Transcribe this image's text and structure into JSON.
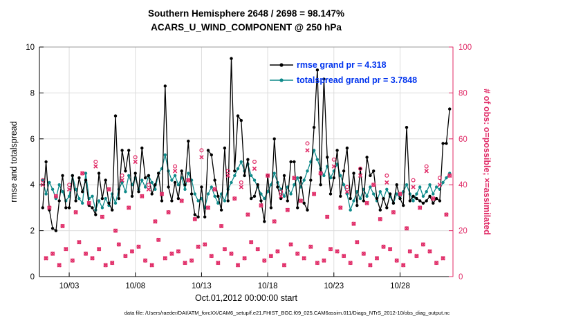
{
  "caption": "data file: /Users/raeder/DAI/ATM_forcXX/CAM6_setup/f.e21.FHIST_BGC.f09_025.CAM6assim.011/Diags_NTrS_2012-10/obs_diag_output.nc",
  "colors": {
    "rmse": "#000000",
    "totalspread": "#0e8a8a",
    "obs": "#e02a66",
    "legend_text": "#0033ee",
    "grid": "#dcdcdc",
    "box": "#999999"
  },
  "chart_data": {
    "type": "line",
    "title_lines": [
      "Southern Hemisphere 2648 / 2698 = 98.147%",
      "ACARS_U_WIND_COMPONENT @ 250 hPa"
    ],
    "xlabel": "Oct.01,2012 00:00:00 start",
    "ylabel_left": "rmse and totalspread",
    "ylabel_right": "# of obs: o=possible; ×=assimilated",
    "ylim_left": [
      0,
      10
    ],
    "ylim_right": [
      0,
      100
    ],
    "y_ticks_left": [
      0,
      2,
      4,
      6,
      8,
      10
    ],
    "y_ticks_right": [
      0,
      20,
      40,
      60,
      80,
      100
    ],
    "x_range": [
      -1,
      124
    ],
    "bin_interval_hours": 6,
    "x_ticks": [
      {
        "pos": 8,
        "label": "10/03"
      },
      {
        "pos": 28,
        "label": "10/08"
      },
      {
        "pos": 48,
        "label": "10/13"
      },
      {
        "pos": 68,
        "label": "10/18"
      },
      {
        "pos": 88,
        "label": "10/23"
      },
      {
        "pos": 108,
        "label": "10/28"
      }
    ],
    "legend": [
      {
        "label": "rmse grand pr = 4.318",
        "series": "rmse"
      },
      {
        "label": "totalspread grand pr = 3.7848",
        "series": "totalspread"
      }
    ],
    "grid": true,
    "series": [
      {
        "name": "rmse",
        "axis": "left",
        "values": [
          3.0,
          5.0,
          2.9,
          2.1,
          2.0,
          3.3,
          4.4,
          3.0,
          3.0,
          4.4,
          3.3,
          4.3,
          3.7,
          4.2,
          3.1,
          3.0,
          2.7,
          4.5,
          3.4,
          4.2,
          3.2,
          2.9,
          7.0,
          3.4,
          5.5,
          4.6,
          5.5,
          3.5,
          4.5,
          3.7,
          5.6,
          4.3,
          4.4,
          3.6,
          4.0,
          4.5,
          3.3,
          8.3,
          3.9,
          3.3,
          4.1,
          3.4,
          4.6,
          4.0,
          5.9,
          3.6,
          2.7,
          2.6,
          3.9,
          2.6,
          5.5,
          5.3,
          4.2,
          3.5,
          2.9,
          5.6,
          3.3,
          9.5,
          4.6,
          7.0,
          6.8,
          4.4,
          5.1,
          3.4,
          3.5,
          4.0,
          3.3,
          2.4,
          4.4,
          3.0,
          6.0,
          3.9,
          3.4,
          4.4,
          3.3,
          5.0,
          5.0,
          3.0,
          4.3,
          3.2,
          2.9,
          4.2,
          6.5,
          9.0,
          4.0,
          8.6,
          5.2,
          3.6,
          4.3,
          5.5,
          3.5,
          4.6,
          5.6,
          3.4,
          4.5,
          3.1,
          4.7,
          3.3,
          5.2,
          4.4,
          4.6,
          3.4,
          2.9,
          3.4,
          3.0,
          3.6,
          3.2,
          4.0,
          3.4,
          3.1,
          6.5,
          3.3,
          3.5,
          3.4,
          3.3,
          3.2,
          3.3,
          3.5,
          3.2,
          3.4,
          3.3,
          5.8,
          5.8,
          7.3
        ]
      },
      {
        "name": "totalspread",
        "axis": "left",
        "values": [
          4.2,
          3.6,
          4.1,
          3.8,
          3.4,
          4.0,
          3.7,
          3.3,
          3.5,
          4.4,
          3.8,
          3.4,
          3.2,
          4.5,
          3.4,
          3.5,
          2.9,
          3.3,
          3.0,
          3.4,
          3.1,
          3.6,
          3.2,
          3.8,
          4.1,
          3.7,
          4.4,
          4.0,
          4.3,
          3.8,
          4.2,
          3.9,
          4.4,
          4.1,
          3.8,
          4.5,
          4.7,
          5.3,
          4.6,
          4.2,
          4.4,
          4.0,
          4.3,
          3.8,
          4.5,
          4.2,
          3.6,
          3.3,
          3.4,
          3.0,
          3.6,
          3.9,
          3.5,
          3.2,
          3.6,
          3.3,
          3.8,
          4.1,
          4.4,
          4.7,
          5.0,
          4.6,
          4.9,
          4.4,
          4.2,
          3.9,
          3.6,
          3.4,
          3.7,
          4.0,
          4.5,
          4.1,
          3.8,
          3.5,
          3.9,
          3.6,
          4.0,
          4.3,
          3.9,
          4.2,
          4.6,
          5.0,
          5.5,
          5.1,
          4.7,
          4.4,
          4.8,
          4.3,
          4.6,
          4.9,
          4.4,
          4.0,
          3.6,
          2.9,
          3.3,
          3.7,
          3.4,
          3.8,
          3.5,
          3.9,
          3.6,
          3.3,
          3.7,
          3.4,
          3.8,
          3.5,
          3.2,
          3.6,
          3.4,
          3.7,
          4.0,
          3.6,
          3.3,
          3.6,
          3.9,
          3.5,
          3.7,
          4.0,
          3.6,
          3.9,
          3.8,
          4.1,
          4.3,
          4.5
        ]
      }
    ],
    "obs_series": [
      {
        "name": "possible",
        "marker": "o",
        "axis": "right",
        "values": [
          42,
          8,
          30,
          10,
          35,
          5,
          22,
          12,
          40,
          7,
          28,
          15,
          45,
          10,
          32,
          8,
          50,
          12,
          26,
          5,
          38,
          6,
          20,
          14,
          44,
          9,
          30,
          11,
          52,
          13,
          35,
          7,
          40,
          5,
          24,
          16,
          36,
          8,
          28,
          10,
          48,
          11,
          33,
          6,
          42,
          7,
          25,
          13,
          55,
          14,
          30,
          9,
          38,
          6,
          22,
          12,
          46,
          10,
          34,
          5,
          41,
          8,
          27,
          15,
          50,
          12,
          31,
          7,
          44,
          9,
          24,
          11,
          37,
          5,
          29,
          14,
          43,
          10,
          33,
          8,
          58,
          13,
          36,
          6,
          45,
          7,
          26,
          12,
          51,
          11,
          30,
          9,
          39,
          6,
          23,
          15,
          47,
          10,
          32,
          5,
          40,
          8,
          25,
          13,
          44,
          12,
          28,
          7,
          36,
          5,
          21,
          11,
          42,
          9,
          30,
          14,
          48,
          11,
          34,
          6,
          43,
          8,
          27,
          44
        ]
      },
      {
        "name": "assimilated",
        "marker": "x",
        "axis": "right",
        "values": [
          40,
          8,
          30,
          10,
          35,
          5,
          22,
          12,
          38,
          7,
          28,
          15,
          45,
          10,
          32,
          8,
          48,
          12,
          26,
          5,
          38,
          6,
          20,
          14,
          42,
          9,
          30,
          11,
          50,
          13,
          35,
          7,
          38,
          5,
          24,
          16,
          36,
          8,
          28,
          10,
          46,
          11,
          33,
          6,
          42,
          7,
          25,
          13,
          52,
          14,
          30,
          9,
          38,
          6,
          22,
          12,
          44,
          10,
          34,
          5,
          39,
          8,
          27,
          15,
          47,
          12,
          31,
          7,
          44,
          9,
          24,
          11,
          35,
          5,
          29,
          14,
          43,
          10,
          33,
          8,
          55,
          13,
          36,
          6,
          45,
          7,
          26,
          12,
          48,
          11,
          30,
          9,
          37,
          6,
          23,
          15,
          44,
          10,
          32,
          5,
          40,
          8,
          25,
          13,
          41,
          12,
          28,
          7,
          36,
          5,
          21,
          11,
          39,
          9,
          30,
          14,
          46,
          11,
          34,
          6,
          40,
          8,
          27,
          44
        ]
      }
    ]
  }
}
